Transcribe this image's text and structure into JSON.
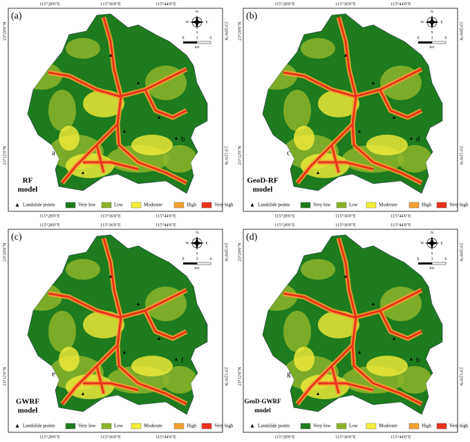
{
  "shared": {
    "longitudes": [
      "115°28'0\"E",
      "115°36'0\"E",
      "115°44'0\"E"
    ],
    "latitudes": [
      "23°20'0\"N",
      "23°12'0\"N"
    ],
    "compass": {
      "n": "N",
      "e": "E",
      "s": "S",
      "w": "W"
    },
    "scale": {
      "ticks": [
        "0",
        "3",
        "6"
      ],
      "unit": "km"
    },
    "legend": {
      "points": "Landslide points",
      "classes": [
        {
          "label": "Very low",
          "color": "#1e7b1e"
        },
        {
          "label": "Low",
          "color": "#8cb42a"
        },
        {
          "label": "Moderate",
          "color": "#f5ee3a"
        },
        {
          "label": "High",
          "color": "#f5a030"
        },
        {
          "label": "Very high",
          "color": "#e8321e"
        }
      ]
    }
  },
  "panels": [
    {
      "label": "(a)",
      "model": [
        "RF",
        "model"
      ],
      "annotations": [
        "a",
        "b"
      ]
    },
    {
      "label": "(b)",
      "model": [
        "GeoD-RF",
        "model"
      ],
      "annotations": [
        "c",
        "d"
      ]
    },
    {
      "label": "(c)",
      "model": [
        "GWRF",
        "model"
      ],
      "annotations": [
        "e",
        "f"
      ]
    },
    {
      "label": "(d)",
      "model": [
        "GeoD-GWRF",
        "model"
      ],
      "annotations": [
        "g",
        "h"
      ]
    }
  ]
}
